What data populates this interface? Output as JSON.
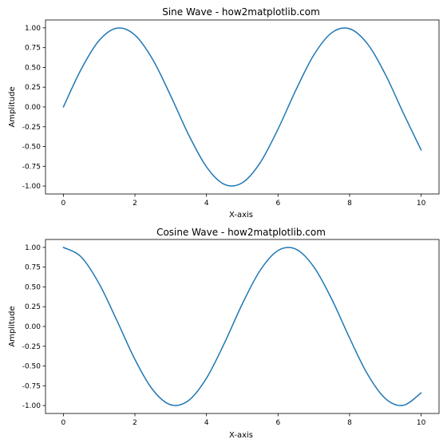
{
  "chart_data": [
    {
      "type": "line",
      "title": "Sine Wave - how2matplotlib.com",
      "xlabel": "X-axis",
      "ylabel": "Amplitude",
      "xlim": [
        -0.5,
        10.5
      ],
      "ylim": [
        -1.1,
        1.1
      ],
      "xticks": [
        0,
        2,
        4,
        6,
        8,
        10
      ],
      "xtick_labels": [
        "0",
        "2",
        "4",
        "6",
        "8",
        "10"
      ],
      "yticks": [
        1.0,
        0.75,
        0.5,
        0.25,
        0.0,
        -0.25,
        -0.5,
        -0.75,
        -1.0
      ],
      "ytick_labels": [
        "1.00",
        "0.75",
        "0.50",
        "0.25",
        "0.00",
        "-0.25",
        "-0.50",
        "-0.75",
        "-1.00"
      ],
      "grid": false,
      "legend": "none",
      "series": [
        {
          "color": "#1f77b4",
          "x": [
            0,
            0.5,
            1,
            1.5,
            2,
            2.5,
            3,
            3.5,
            4,
            4.5,
            5,
            5.5,
            6,
            6.5,
            7,
            7.5,
            8,
            8.5,
            9,
            9.5,
            10
          ],
          "y": [
            0.0,
            0.479,
            0.841,
            0.997,
            0.909,
            0.598,
            0.141,
            -0.351,
            -0.757,
            -0.978,
            -0.959,
            -0.706,
            -0.279,
            0.215,
            0.657,
            0.938,
            0.989,
            0.798,
            0.412,
            -0.075,
            -0.544
          ]
        }
      ]
    },
    {
      "type": "line",
      "title": "Cosine Wave - how2matplotlib.com",
      "xlabel": "X-axis",
      "ylabel": "Amplitude",
      "xlim": [
        -0.5,
        10.5
      ],
      "ylim": [
        -1.1,
        1.1
      ],
      "xticks": [
        0,
        2,
        4,
        6,
        8,
        10
      ],
      "xtick_labels": [
        "0",
        "2",
        "4",
        "6",
        "8",
        "10"
      ],
      "yticks": [
        1.0,
        0.75,
        0.5,
        0.25,
        0.0,
        -0.25,
        -0.5,
        -0.75,
        -1.0
      ],
      "ytick_labels": [
        "1.00",
        "0.75",
        "0.50",
        "0.25",
        "0.00",
        "-0.25",
        "-0.50",
        "-0.75",
        "-1.00"
      ],
      "grid": false,
      "legend": "none",
      "series": [
        {
          "color": "#1f77b4",
          "x": [
            0,
            0.5,
            1,
            1.5,
            2,
            2.5,
            3,
            3.5,
            4,
            4.5,
            5,
            5.5,
            6,
            6.5,
            7,
            7.5,
            8,
            8.5,
            9,
            9.5,
            10
          ],
          "y": [
            1.0,
            0.878,
            0.54,
            0.071,
            -0.416,
            -0.801,
            -0.99,
            -0.936,
            -0.654,
            -0.211,
            0.284,
            0.709,
            0.96,
            0.977,
            0.754,
            0.347,
            -0.146,
            -0.602,
            -0.911,
            -0.997,
            -0.839
          ]
        }
      ]
    }
  ]
}
